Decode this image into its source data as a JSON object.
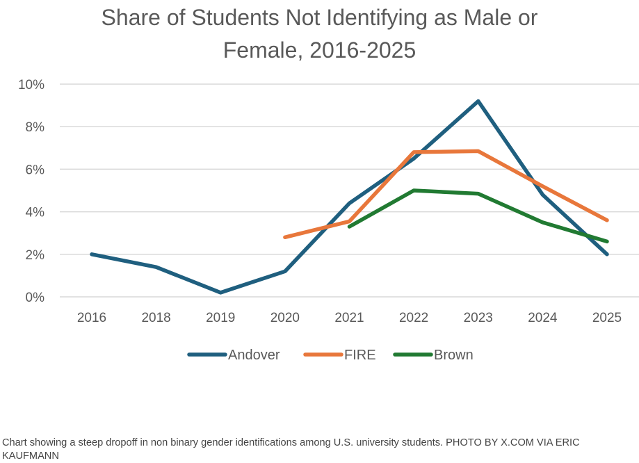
{
  "caption": "Chart showing a steep dropoff in non binary gender identifications among U.S. university students. PHOTO BY X.COM VIA ERIC KAUFMANN",
  "chart_data": {
    "type": "line",
    "title": "Share of Students Not Identifying as Male or Female, 2016-2025",
    "title_lines": [
      "Share of Students Not Identifying as Male or",
      "Female, 2016-2025"
    ],
    "xlabel": "",
    "ylabel": "",
    "categories": [
      "2016",
      "2018",
      "2019",
      "2020",
      "2021",
      "2022",
      "2023",
      "2024",
      "2025"
    ],
    "ylim": [
      0,
      10
    ],
    "yticks": [
      0,
      2,
      4,
      6,
      8,
      10
    ],
    "ytick_labels": [
      "0%",
      "2%",
      "4%",
      "6%",
      "8%",
      "10%"
    ],
    "grid": true,
    "legend": "bottom",
    "series": [
      {
        "name": "Andover",
        "color": "#1f5f7f",
        "values": [
          2.0,
          1.4,
          0.2,
          1.2,
          4.4,
          6.5,
          9.2,
          4.8,
          2.0
        ]
      },
      {
        "name": "FIRE",
        "color": "#e8773b",
        "values": [
          null,
          null,
          null,
          2.8,
          3.55,
          6.8,
          6.85,
          5.2,
          3.6
        ]
      },
      {
        "name": "Brown",
        "color": "#217a32",
        "values": [
          null,
          null,
          null,
          null,
          3.3,
          5.0,
          4.85,
          3.5,
          2.6
        ]
      }
    ]
  }
}
